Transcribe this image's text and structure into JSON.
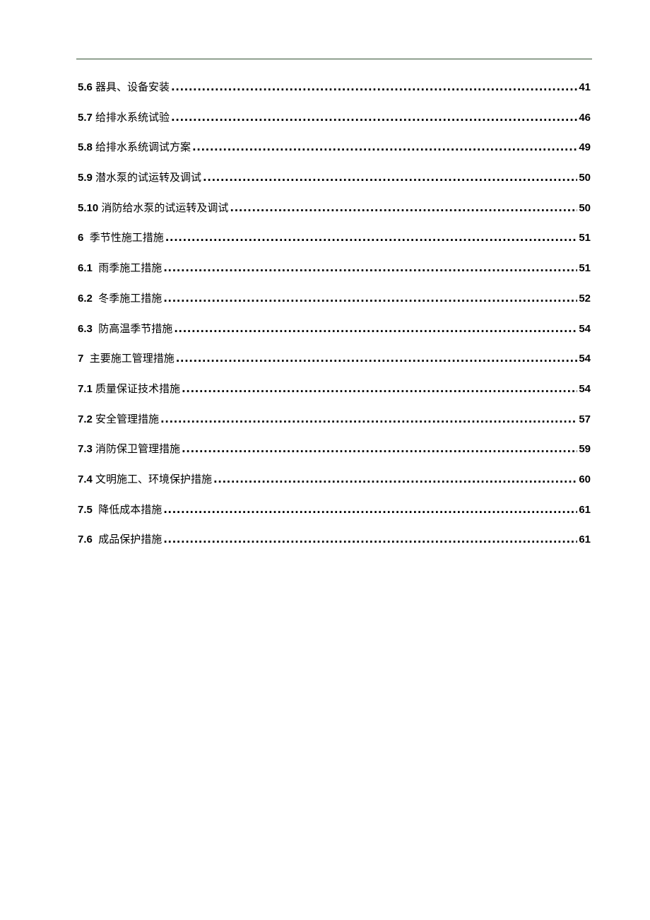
{
  "colors": {
    "header_rule": "#2f4f2f"
  },
  "toc": [
    {
      "num": "5.6 ",
      "title": "器具、设备安装",
      "page": "41"
    },
    {
      "num": "5.7 ",
      "title": "给排水系统试验",
      "page": "46"
    },
    {
      "num": "5.8 ",
      "title": "给排水系统调试方案",
      "page": "49"
    },
    {
      "num": "5.9 ",
      "title": "潜水泵的试运转及调试",
      "page": "50"
    },
    {
      "num": "5.10 ",
      "title": "消防给水泵的试运转及调试",
      "page": "50"
    },
    {
      "num": "6  ",
      "title": "季节性施工措施",
      "page": "51"
    },
    {
      "num": "6.1  ",
      "title": "雨季施工措施",
      "page": "51"
    },
    {
      "num": "6.2  ",
      "title": "冬季施工措施",
      "page": "52"
    },
    {
      "num": "6.3  ",
      "title": "防高温季节措施",
      "page": "54"
    },
    {
      "num": "7  ",
      "title": "主要施工管理措施",
      "page": "54"
    },
    {
      "num": "7.1 ",
      "title": "质量保证技术措施",
      "page": "54"
    },
    {
      "num": "7.2 ",
      "title": "安全管理措施",
      "page": "57"
    },
    {
      "num": "7.3 ",
      "title": "消防保卫管理措施",
      "page": "59"
    },
    {
      "num": "7.4 ",
      "title": "文明施工、环境保护措施",
      "page": "60"
    },
    {
      "num": "7.5  ",
      "title": "降低成本措施",
      "page": "61"
    },
    {
      "num": "7.6  ",
      "title": "成品保护措施",
      "page": "61"
    }
  ]
}
